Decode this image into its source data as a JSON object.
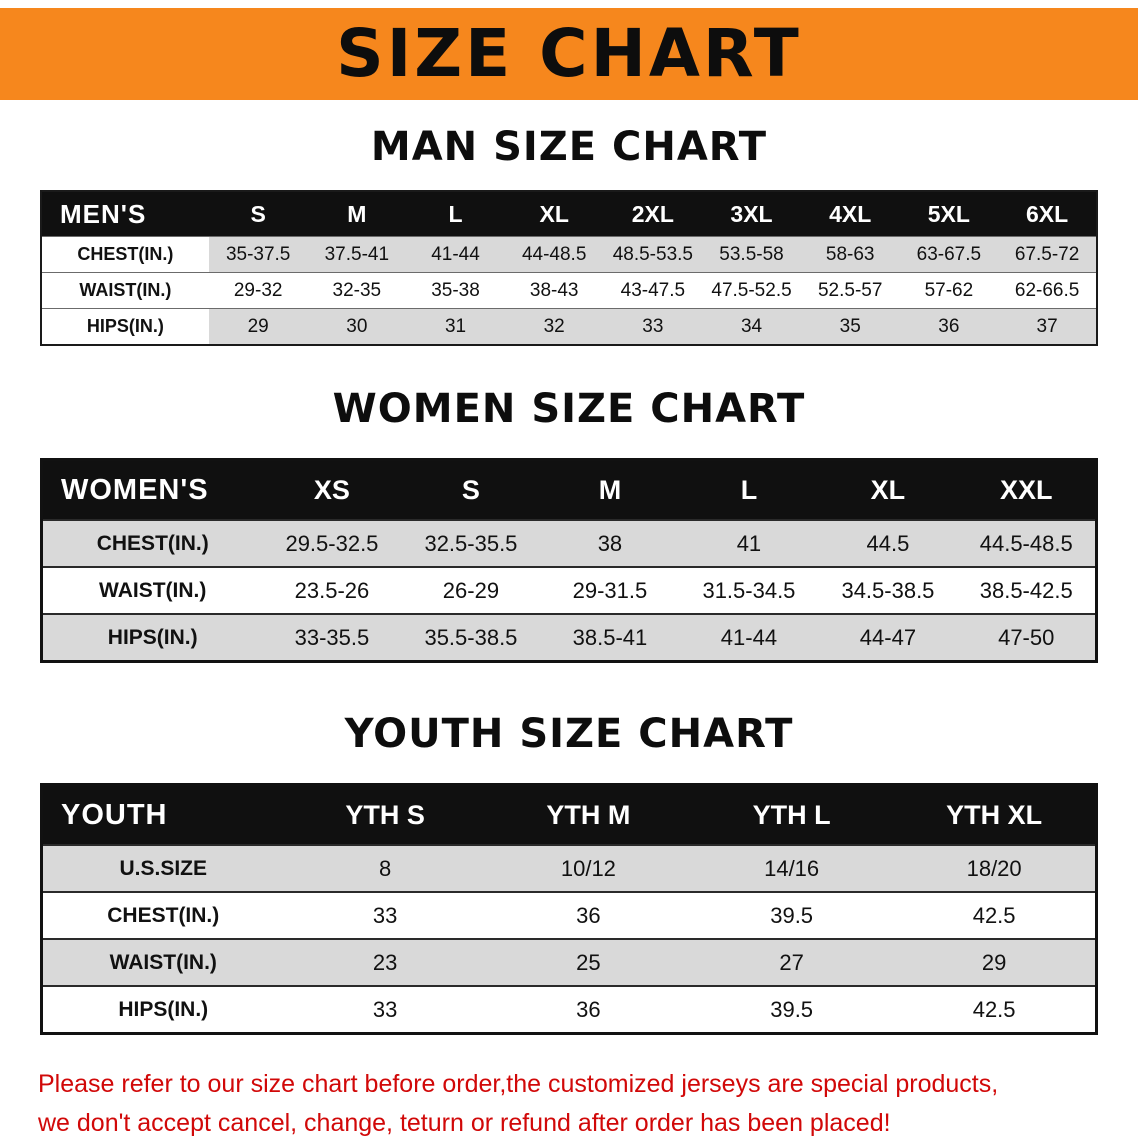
{
  "banner": {
    "title": "SIZE CHART"
  },
  "sections": [
    {
      "id": "mens",
      "heading": "MAN SIZE CHART",
      "table": {
        "header": [
          "MEN'S",
          "S",
          "M",
          "L",
          "XL",
          "2XL",
          "3XL",
          "4XL",
          "5XL",
          "6XL"
        ],
        "rows": [
          [
            "CHEST(IN.)",
            "35-37.5",
            "37.5-41",
            "41-44",
            "44-48.5",
            "48.5-53.5",
            "53.5-58",
            "58-63",
            "63-67.5",
            "67.5-72"
          ],
          [
            "WAIST(IN.)",
            "29-32",
            "32-35",
            "35-38",
            "38-43",
            "43-47.5",
            "47.5-52.5",
            "52.5-57",
            "57-62",
            "62-66.5"
          ],
          [
            "HIPS(IN.)",
            "29",
            "30",
            "31",
            "32",
            "33",
            "34",
            "35",
            "36",
            "37"
          ]
        ]
      }
    },
    {
      "id": "womens",
      "heading": "WOMEN SIZE CHART",
      "table": {
        "header": [
          "WOMEN'S",
          "XS",
          "S",
          "M",
          "L",
          "XL",
          "XXL"
        ],
        "rows": [
          [
            "CHEST(IN.)",
            "29.5-32.5",
            "32.5-35.5",
            "38",
            "41",
            "44.5",
            "44.5-48.5"
          ],
          [
            "WAIST(IN.)",
            "23.5-26",
            "26-29",
            "29-31.5",
            "31.5-34.5",
            "34.5-38.5",
            "38.5-42.5"
          ],
          [
            "HIPS(IN.)",
            "33-35.5",
            "35.5-38.5",
            "38.5-41",
            "41-44",
            "44-47",
            "47-50"
          ]
        ]
      }
    },
    {
      "id": "youth",
      "heading": "YOUTH SIZE CHART",
      "table": {
        "header": [
          "YOUTH",
          "YTH S",
          "YTH M",
          "YTH L",
          "YTH XL"
        ],
        "rows": [
          [
            "U.S.SIZE",
            "8",
            "10/12",
            "14/16",
            "18/20"
          ],
          [
            "CHEST(IN.)",
            "33",
            "36",
            "39.5",
            "42.5"
          ],
          [
            "WAIST(IN.)",
            "23",
            "25",
            "27",
            "29"
          ],
          [
            "HIPS(IN.)",
            "33",
            "36",
            "39.5",
            "42.5"
          ]
        ]
      }
    }
  ],
  "disclaimer": {
    "lines": [
      "Please refer to our size chart before order,the customized jerseys are special products,",
      "we don't accept cancel, change, teturn or refund after order has been placed!"
    ]
  },
  "colors": {
    "banner_bg": "#f6871d",
    "table_header_bg": "#101010",
    "row_stripe": "#d9d9d9",
    "disclaimer_text": "#d10808"
  }
}
